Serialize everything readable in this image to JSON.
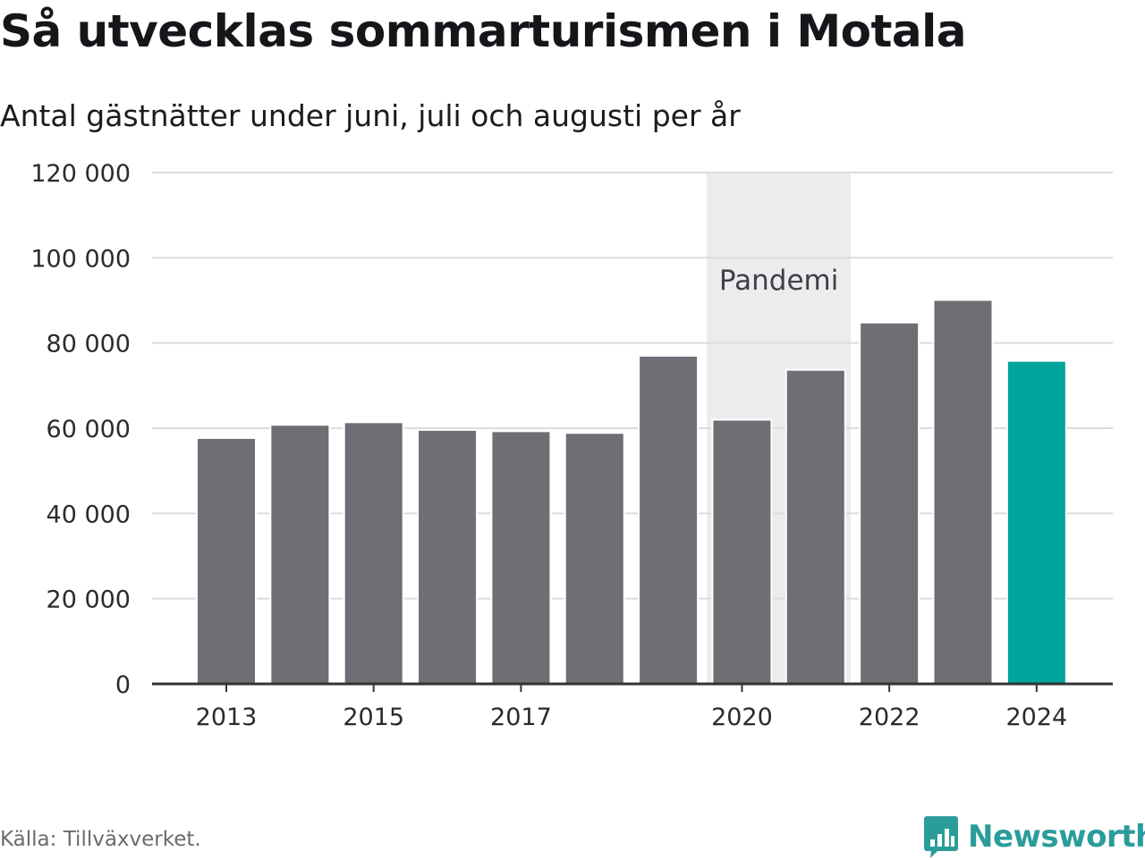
{
  "chart_data": {
    "type": "bar",
    "title": "Så utvecklas sommarturismen i Motala",
    "subtitle": "Antal gästnätter under juni, juli och augusti per år",
    "categories": [
      2013,
      2014,
      2015,
      2016,
      2017,
      2018,
      2019,
      2020,
      2021,
      2022,
      2023,
      2024
    ],
    "values": [
      57700,
      60800,
      61400,
      59600,
      59300,
      58900,
      77000,
      62000,
      73700,
      84800,
      90100,
      75800
    ],
    "x_tick_labels": [
      "2013",
      "2015",
      "2017",
      "2020",
      "2022",
      "2024"
    ],
    "y_tick_labels": [
      "0",
      "20 000",
      "40 000",
      "60 000",
      "80 000",
      "100 000",
      "120 000"
    ],
    "ylim": [
      0,
      120000
    ],
    "grid": true,
    "highlight_category": 2024,
    "annotation": {
      "label": "Pandemi",
      "x_start": 2020,
      "x_end": 2021
    },
    "colors": {
      "bar": "#6f6e75",
      "highlight": "#00a49a",
      "band": "#ececec",
      "grid": "#dcdcdc",
      "axis": "#333333"
    }
  },
  "source": "Källa: Tillväxverket.",
  "brand": {
    "name": "Newsworthy",
    "icon": "bar-chart-logo-icon"
  }
}
